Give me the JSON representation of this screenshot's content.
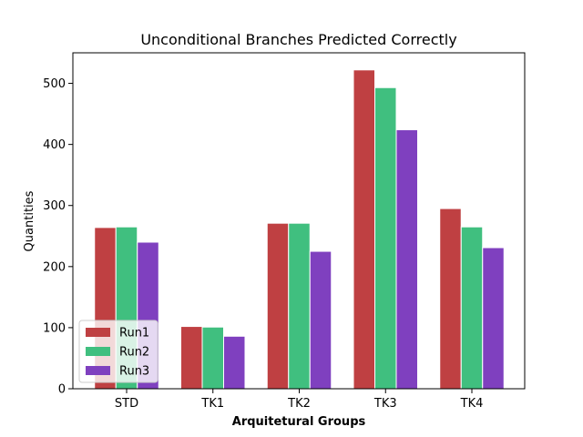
{
  "chart_data": {
    "type": "bar",
    "title": "Unconditional Branches Predicted Correctly",
    "xlabel": "Arquitetural Groups",
    "ylabel": "Quantities",
    "categories": [
      "STD",
      "TK1",
      "TK2",
      "TK3",
      "TK4"
    ],
    "series": [
      {
        "name": "Run1",
        "color": "#bf4042",
        "values": [
          264,
          102,
          271,
          522,
          295
        ]
      },
      {
        "name": "Run2",
        "color": "#40bf7f",
        "values": [
          265,
          101,
          271,
          493,
          265
        ]
      },
      {
        "name": "Run3",
        "color": "#7f40bf",
        "values": [
          240,
          86,
          225,
          424,
          231
        ]
      }
    ],
    "ylim": [
      0,
      550
    ],
    "yticks": [
      0,
      100,
      200,
      300,
      400,
      500
    ],
    "grid": false,
    "legend_position": "lower-left"
  }
}
